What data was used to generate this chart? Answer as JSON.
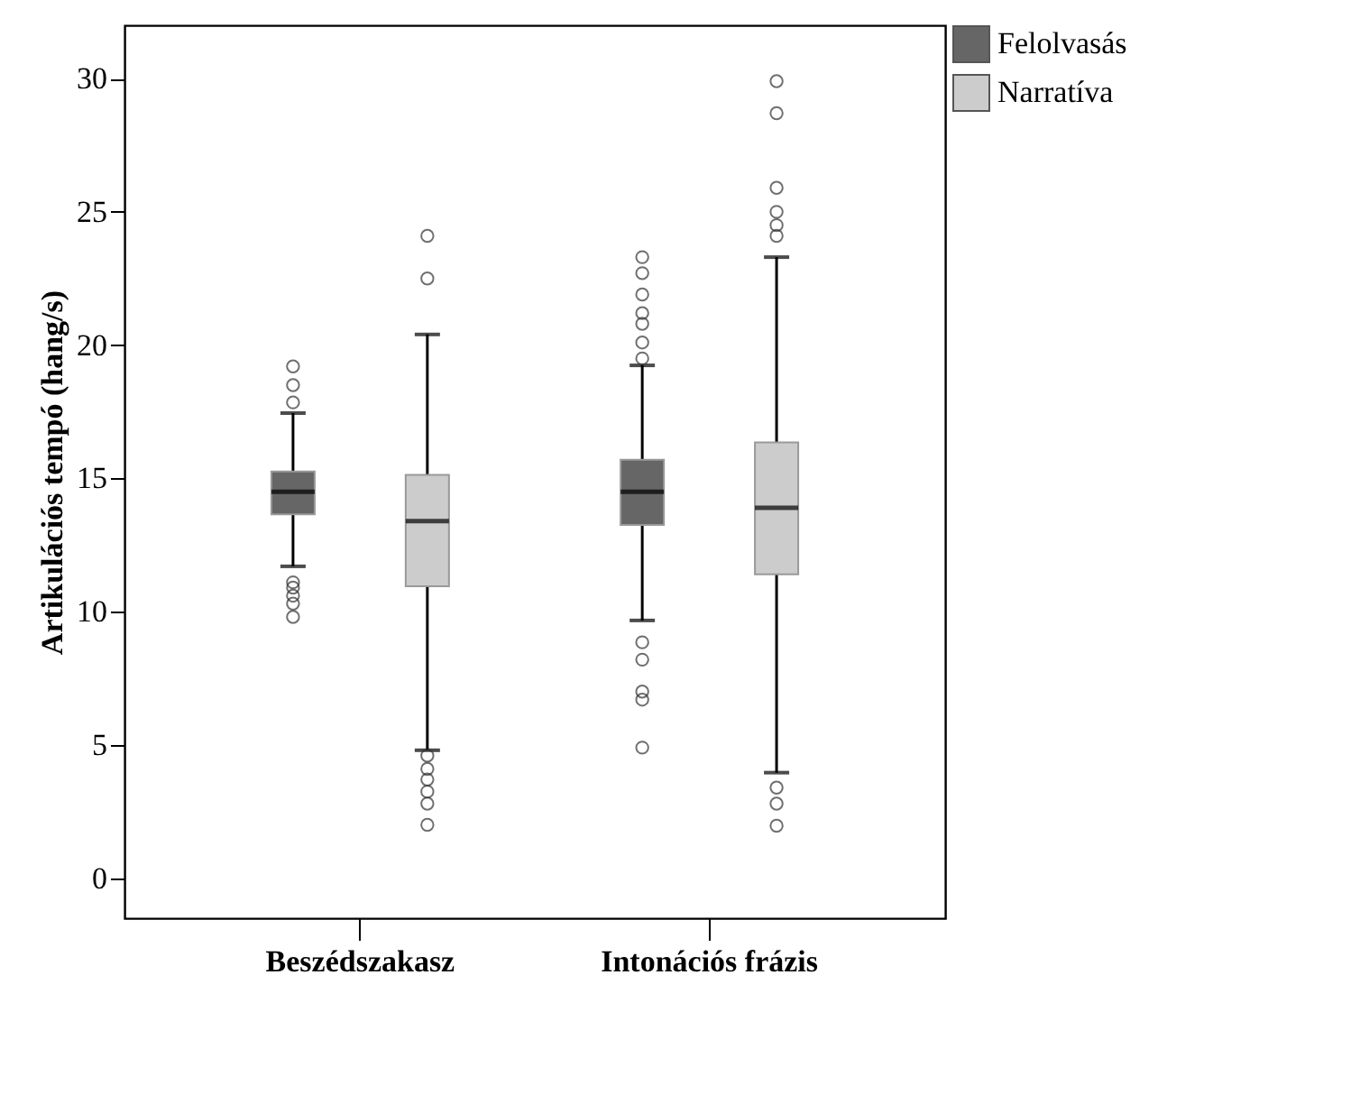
{
  "chart_data": {
    "type": "box",
    "ylabel": "Artikulációs tempó (hang/s)",
    "categories": [
      "Beszédszakasz",
      "Intonációs frázis"
    ],
    "ylim": [
      -1.5,
      32
    ],
    "yticks": [
      0,
      5,
      10,
      15,
      20,
      25,
      30
    ],
    "grid": false,
    "legend": "top right",
    "series": [
      {
        "name": "Felolvasás",
        "color": "#666666",
        "boxes": [
          {
            "low": 11.7,
            "q1": 13.65,
            "median": 14.5,
            "q3": 15.26,
            "high": 17.45,
            "outliers": [
              19.2,
              18.5,
              17.85,
              11.1,
              10.9,
              10.6,
              10.3,
              9.8
            ]
          },
          {
            "low": 9.67,
            "q1": 13.25,
            "median": 14.5,
            "q3": 15.7,
            "high": 19.24,
            "outliers": [
              23.3,
              22.7,
              21.9,
              21.2,
              20.8,
              20.1,
              19.5,
              8.85,
              8.2,
              7.0,
              6.7,
              4.9
            ]
          }
        ]
      },
      {
        "name": "Narratíva",
        "color": "#cccccc",
        "boxes": [
          {
            "low": 4.8,
            "q1": 10.95,
            "median": 13.4,
            "q3": 15.13,
            "high": 20.4,
            "outliers": [
              24.1,
              22.5,
              4.6,
              4.1,
              3.7,
              3.25,
              2.8,
              2.0
            ]
          },
          {
            "low": 3.96,
            "q1": 11.4,
            "median": 13.9,
            "q3": 16.35,
            "high": 23.3,
            "outliers": [
              29.9,
              28.7,
              25.9,
              25.0,
              24.5,
              24.1,
              3.4,
              2.8,
              1.97
            ]
          }
        ]
      }
    ]
  }
}
